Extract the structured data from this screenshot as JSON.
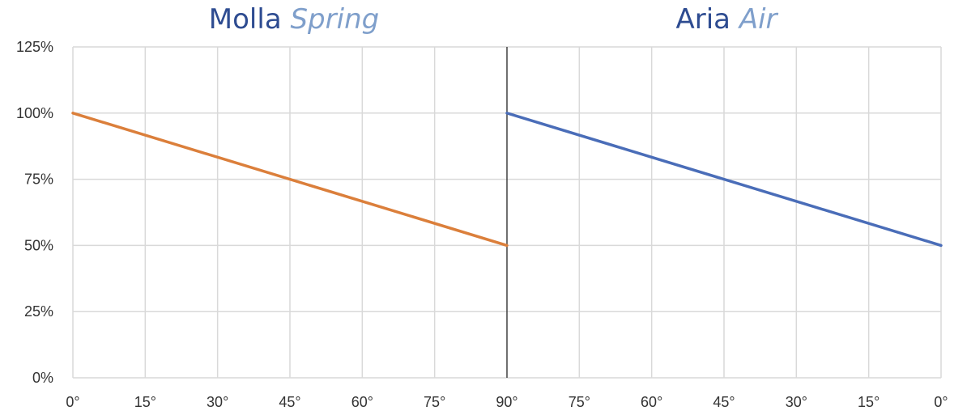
{
  "titles": {
    "left": {
      "main": "Molla",
      "sub": "Spring"
    },
    "right": {
      "main": "Aria",
      "sub": "Air"
    }
  },
  "chart_data": {
    "type": "line",
    "grid": true,
    "ylim": [
      0,
      125
    ],
    "y_ticks": [
      "0%",
      "25%",
      "50%",
      "75%",
      "100%",
      "125%"
    ],
    "y_tick_values": [
      0,
      25,
      50,
      75,
      100,
      125
    ],
    "x_ticks": [
      "0°",
      "15°",
      "30°",
      "45°",
      "60°",
      "75°",
      "90°",
      "75°",
      "60°",
      "45°",
      "30°",
      "15°",
      "0°"
    ],
    "panels": [
      {
        "title": "Molla Spring",
        "x": [
          0,
          90
        ],
        "values": [
          100,
          50
        ],
        "color": "#DB7F3B"
      },
      {
        "title": "Aria Air",
        "x": [
          90,
          0
        ],
        "values": [
          100,
          50
        ],
        "color": "#4A6DB8"
      }
    ],
    "divider_at_tick": 6
  }
}
